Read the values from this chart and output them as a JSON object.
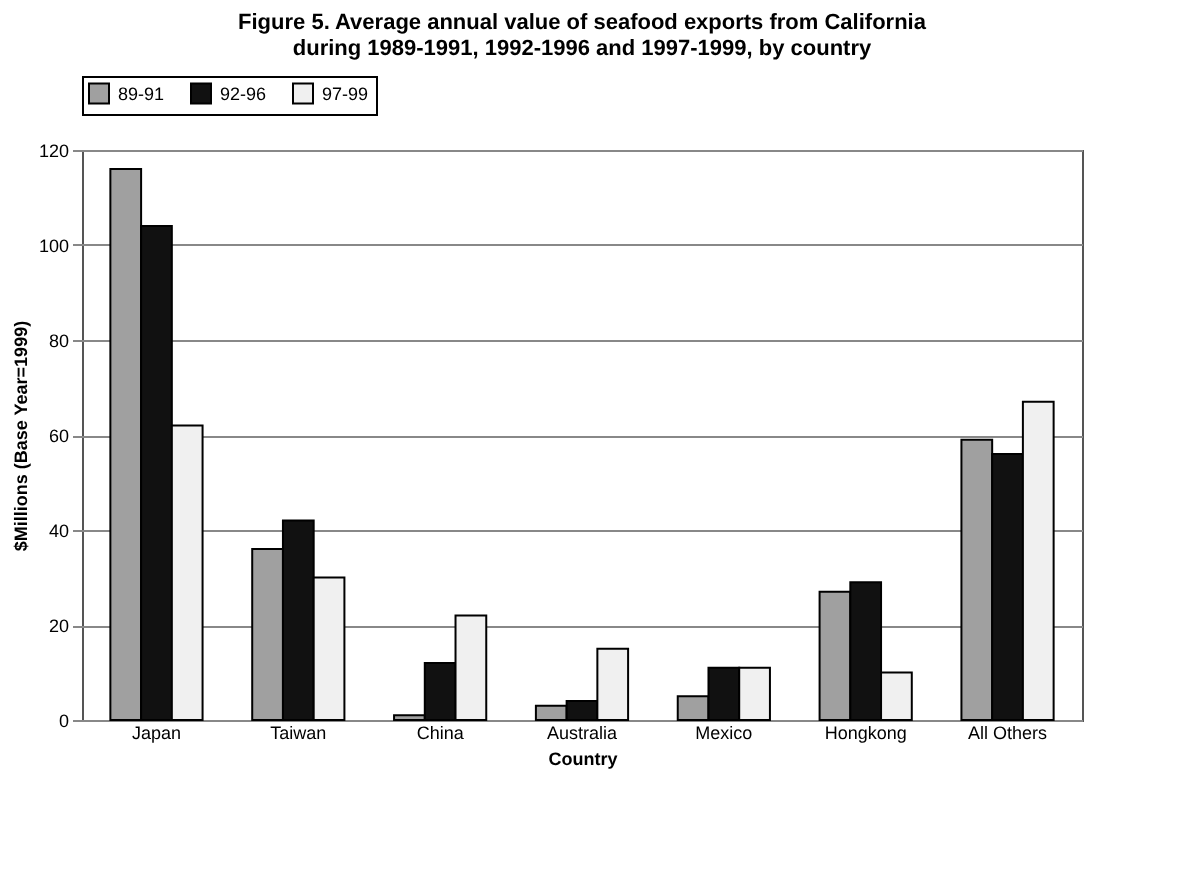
{
  "chart_data": {
    "type": "bar",
    "title": "Figure 5.  Average annual value of seafood exports from California\nduring 1989-1991, 1992-1996 and 1997-1999, by country",
    "xlabel": "Country",
    "ylabel": "$Millions (Base Year=1999)",
    "categories": [
      "Japan",
      "Taiwan",
      "China",
      "Australia",
      "Mexico",
      "Hongkong",
      "All Others"
    ],
    "series": [
      {
        "name": "89-91",
        "color": "#a0a0a0",
        "values": [
          116,
          36,
          1,
          3,
          5,
          27,
          59
        ]
      },
      {
        "name": "92-96",
        "color": "#111111",
        "values": [
          104,
          42,
          12,
          4,
          11,
          29,
          56
        ]
      },
      {
        "name": "97-99",
        "color": "#f0f0f0",
        "values": [
          62,
          30,
          22,
          15,
          11,
          10,
          67
        ]
      }
    ],
    "ylim": [
      0,
      120
    ],
    "yticks": [
      0,
      20,
      40,
      60,
      80,
      100,
      120
    ],
    "grid": "y",
    "legend": "top"
  }
}
